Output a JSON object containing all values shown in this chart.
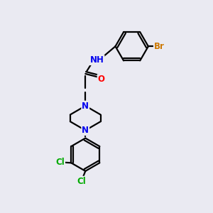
{
  "bg_color": "#eaeaf2",
  "bond_color": "#000000",
  "bond_width": 1.6,
  "atom_colors": {
    "N": "#0000ee",
    "O": "#ff0000",
    "Br": "#cc7700",
    "Cl": "#00aa00",
    "H": "#558888",
    "C": "#000000"
  },
  "font_size": 8.5
}
